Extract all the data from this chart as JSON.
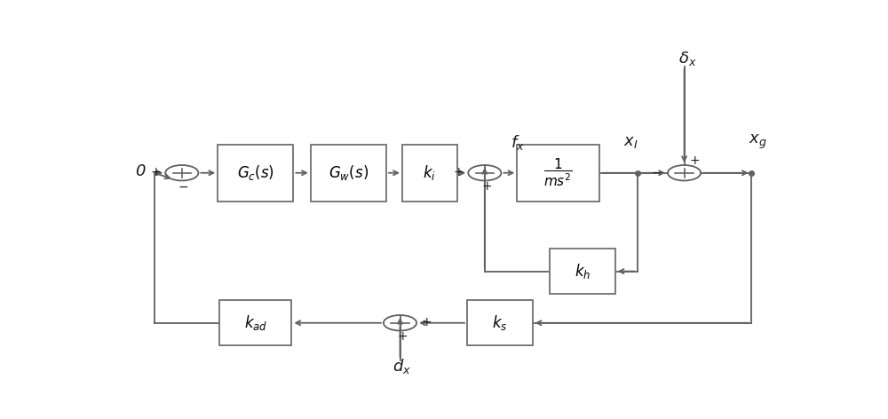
{
  "bg_color": "#ffffff",
  "line_color": "#606060",
  "text_color": "#1a1a1a",
  "box_edge_color": "#707070",
  "fig_width": 10.0,
  "fig_height": 4.72
}
